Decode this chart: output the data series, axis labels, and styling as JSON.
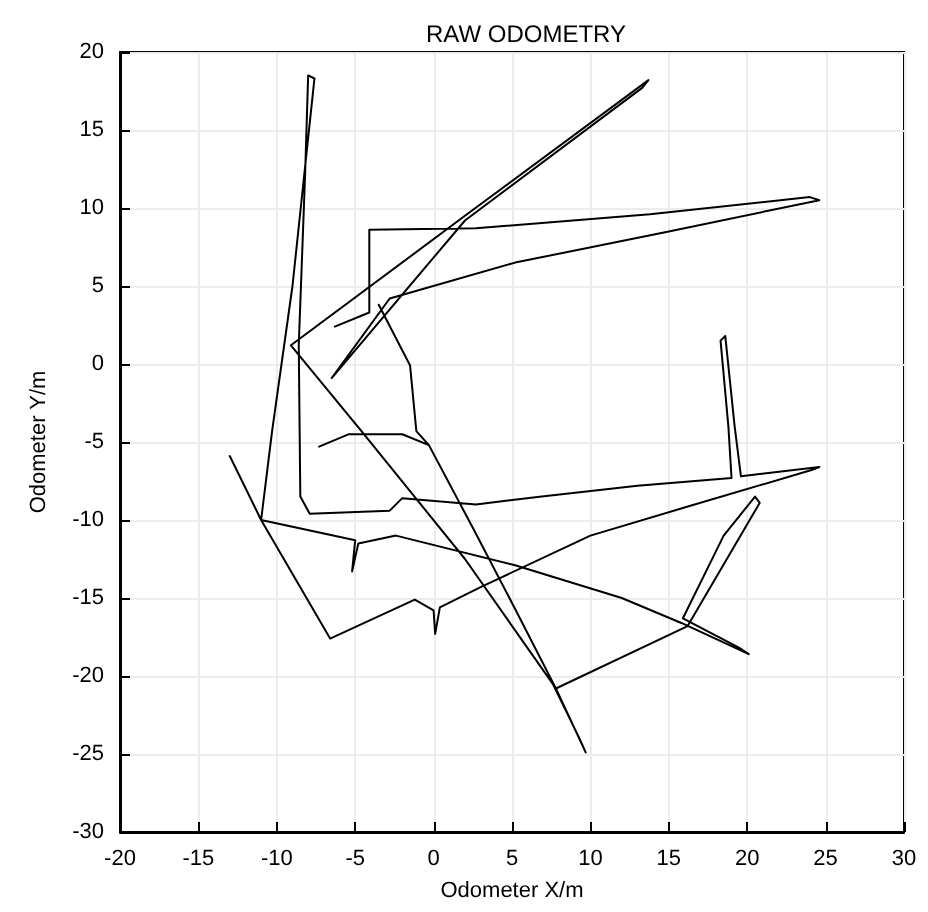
{
  "chart_data": {
    "type": "line",
    "title": "RAW ODOMETRY",
    "xlabel": "Odometer X/m",
    "ylabel": "Odometer Y/m",
    "xlim": [
      -20,
      30
    ],
    "xticks": [
      -20,
      -15,
      -10,
      -5,
      0,
      5,
      10,
      15,
      20,
      25,
      30
    ],
    "ylim": [
      -30,
      20
    ],
    "yticks": [
      -30,
      -25,
      -20,
      -15,
      -10,
      -5,
      0,
      5,
      10,
      15,
      20
    ],
    "grid": true,
    "marker": "none",
    "line_style": "solid",
    "series": [
      {
        "color": "#000000",
        "x": [
          -13,
          -11,
          -6.6,
          -1.2,
          0,
          0.1,
          0.4,
          3,
          10,
          16,
          24.1,
          24.6,
          19.6,
          19.2,
          18.6,
          18.3,
          18.8,
          19,
          13,
          6.9,
          2.7,
          -2,
          -2.8,
          -7.9,
          -8.5,
          -8.6,
          -8.2,
          -8,
          -7.6,
          -9,
          -10.3,
          -11,
          -5,
          -5.2,
          -4.8,
          -2.4,
          5.2,
          12,
          15.8,
          20.1,
          19.5,
          15.9,
          18.5,
          20.5,
          20.8,
          16.2,
          7.8,
          9.7,
          9.3,
          7.6,
          2,
          -4.6,
          -9.1,
          2,
          13.7,
          13.3,
          2,
          -6.5,
          -2.8,
          5.2,
          15,
          24.6,
          24,
          13.8,
          2.7,
          -4.1,
          -4.1,
          -6.3,
          null,
          -3.5,
          -1.5,
          -1.1,
          -0.3,
          2.5,
          5.2,
          7.8,
          null,
          -7.3,
          -5.4,
          -2,
          -0.3
        ],
        "values": [
          -5.9,
          -10,
          -17.6,
          -15.1,
          -15.8,
          -17.3,
          -15.6,
          -14.3,
          -11,
          -9.2,
          -6.8,
          -6.6,
          -7.2,
          -4,
          1.8,
          1.5,
          -4,
          -7.3,
          -7.8,
          -8.5,
          -9,
          -8.6,
          -9.4,
          -9.6,
          -8.5,
          1.2,
          12,
          18.5,
          18.3,
          5,
          -4.3,
          -10,
          -11.3,
          -13.3,
          -11.5,
          -11,
          -12.9,
          -15,
          -16.6,
          -18.6,
          -18.2,
          -16.3,
          -11,
          -8.5,
          -8.9,
          -16.8,
          -20.8,
          -24.9,
          -24,
          -20.5,
          -12.5,
          -4.3,
          1.2,
          9.5,
          18.2,
          17.7,
          9.2,
          -0.9,
          4.2,
          6.5,
          8.5,
          10.5,
          10.7,
          9.6,
          8.7,
          8.6,
          3.3,
          2.4,
          null,
          3.8,
          -0.1,
          -4.3,
          -5.2,
          -10.5,
          -15.7,
          -20.8,
          null,
          -5.3,
          -4.5,
          -4.5,
          -5.2
        ]
      }
    ]
  }
}
